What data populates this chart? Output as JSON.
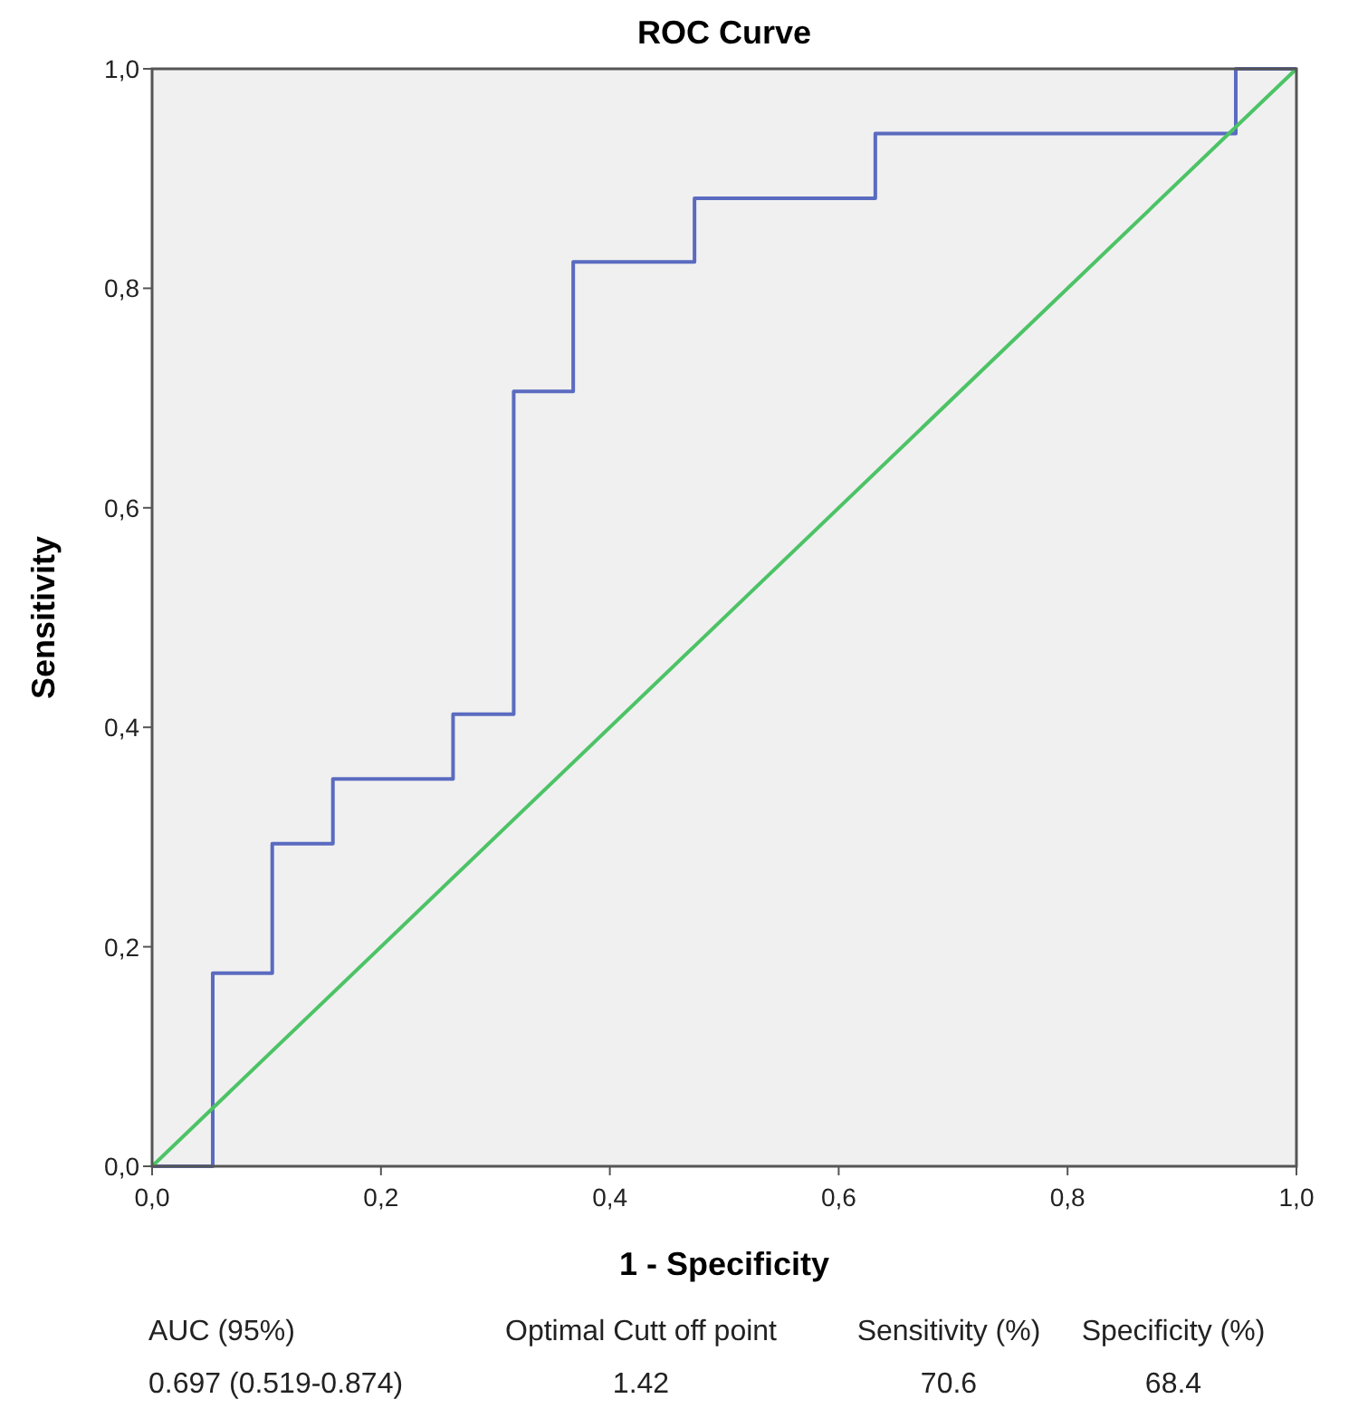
{
  "chart_data": {
    "type": "line",
    "title": "ROC Curve",
    "xlabel": "1 - Specificity",
    "ylabel": "Sensitivity",
    "xlim": [
      0,
      1
    ],
    "ylim": [
      0,
      1
    ],
    "xticks": [
      {
        "value": 0,
        "label": "0,0"
      },
      {
        "value": 0.2,
        "label": "0,2"
      },
      {
        "value": 0.4,
        "label": "0,4"
      },
      {
        "value": 0.6,
        "label": "0,6"
      },
      {
        "value": 0.8,
        "label": "0,8"
      },
      {
        "value": 1,
        "label": "1,0"
      }
    ],
    "yticks": [
      {
        "value": 0,
        "label": "0,0"
      },
      {
        "value": 0.2,
        "label": "0,2"
      },
      {
        "value": 0.4,
        "label": "0,4"
      },
      {
        "value": 0.6,
        "label": "0,6"
      },
      {
        "value": 0.8,
        "label": "0,8"
      },
      {
        "value": 1,
        "label": "1,0"
      }
    ],
    "grid": false,
    "marker": "none",
    "series": [
      {
        "color": "#5a6bc0",
        "x": [
          0,
          0.053,
          0.053,
          0.105,
          0.105,
          0.158,
          0.158,
          0.263,
          0.263,
          0.316,
          0.316,
          0.368,
          0.368,
          0.474,
          0.474,
          0.632,
          0.632,
          0.947,
          0.947,
          1
        ],
        "values": [
          0,
          0,
          0.176,
          0.176,
          0.294,
          0.294,
          0.353,
          0.353,
          0.412,
          0.412,
          0.706,
          0.706,
          0.824,
          0.824,
          0.882,
          0.882,
          0.941,
          0.941,
          1,
          1
        ]
      },
      {
        "color": "#4cc366",
        "x": [
          0,
          1
        ],
        "values": [
          0,
          1
        ]
      }
    ],
    "annotations": [
      "AUC (95%)",
      "Optimal Cutt off point",
      "Sensitivity (%)",
      "Specificity (%)",
      "0.697 (0.519-0.874)",
      "1.42",
      "70.6",
      "68.4"
    ]
  }
}
